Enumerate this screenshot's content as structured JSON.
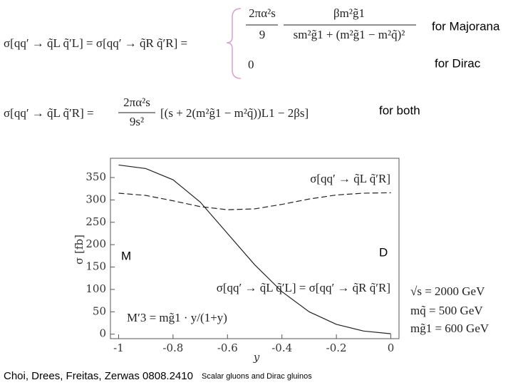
{
  "slide": {
    "eq1_lhs": "σ[qq′ → q̃L q̃′L]  =  σ[qq′ → q̃R q̃′R] =",
    "eq1_num1": "2πα²s",
    "eq1_den1": "9",
    "eq1_num2": "βm²g̃1",
    "eq1_den2": "sm²g̃1 + (m²g̃1 − m²q̃)²",
    "eq1_zero": "0",
    "for_majorana": "for Majorana",
    "for_dirac": "for Dirac",
    "eq2_lhs": "σ[qq′ → q̃L q̃′R]  =",
    "eq2_num": "2πα²s",
    "eq2_den": "9s²",
    "eq2_rhs": "[(s + 2(m²g̃1 − m²q̃))L1 − 2βs]",
    "for_both": "for both",
    "citation": "Choi, Drees, Freitas, Zerwas 0808.2410",
    "footer": "Scalar gluons and Dirac gluinos"
  },
  "chart_data": {
    "type": "line",
    "x_label": "y",
    "y_label": "σ [fb]",
    "x": [
      -1,
      -0.9,
      -0.8,
      -0.7,
      -0.6,
      -0.5,
      -0.4,
      -0.3,
      -0.2,
      -0.1,
      0
    ],
    "series": [
      {
        "name": "σ[qq′ → q̃L q̃′L] = σ[qq′ → q̃R q̃′R]",
        "color": "#222222",
        "linestyle": "solid",
        "values": [
          378,
          370,
          345,
          295,
          225,
          155,
          95,
          50,
          22,
          7,
          1
        ]
      },
      {
        "name": "σ[qq′ → q̃L q̃′R]",
        "color": "#222222",
        "linestyle": "dashed",
        "values": [
          315,
          310,
          298,
          285,
          278,
          280,
          290,
          302,
          311,
          315,
          316
        ]
      }
    ],
    "xlim": [
      -1.03,
      0.03
    ],
    "ylim": [
      -10,
      393
    ],
    "xticks": [
      -1,
      -0.8,
      -0.6,
      -0.4,
      -0.2,
      0
    ],
    "yticks": [
      0,
      50,
      100,
      150,
      200,
      250,
      300,
      350
    ],
    "annotations": [
      "M",
      "D",
      "M′3 = mg̃1 · y/(1+y)",
      "√s = 2000 GeV",
      "mq̃ = 500 GeV",
      "mg̃1 = 600 GeV"
    ]
  }
}
